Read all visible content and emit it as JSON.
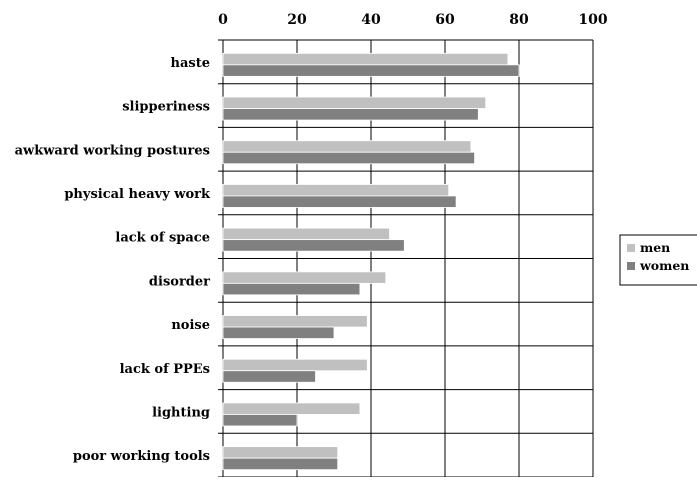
{
  "chart_data": {
    "type": "bar",
    "orientation": "horizontal",
    "categories": [
      "haste",
      "slipperiness",
      "awkward working postures",
      "physical heavy work",
      "lack of space",
      "disorder",
      "noise",
      "lack of PPEs",
      "lighting",
      "poor working tools"
    ],
    "series": [
      {
        "name": "men",
        "color": "#c0c0c0",
        "values": [
          77,
          71,
          67,
          61,
          45,
          44,
          39,
          39,
          37,
          31
        ]
      },
      {
        "name": "women",
        "color": "#808080",
        "values": [
          80,
          69,
          68,
          63,
          49,
          37,
          30,
          25,
          20,
          31
        ]
      }
    ],
    "xlim": [
      0,
      100
    ],
    "xticks": [
      "0",
      "20",
      "40",
      "60",
      "80",
      "100"
    ],
    "x_axis_position": "top",
    "grid": "vertical gridlines and horizontal category separators",
    "legend": {
      "position": "right",
      "entries": [
        "men",
        "women"
      ]
    }
  }
}
